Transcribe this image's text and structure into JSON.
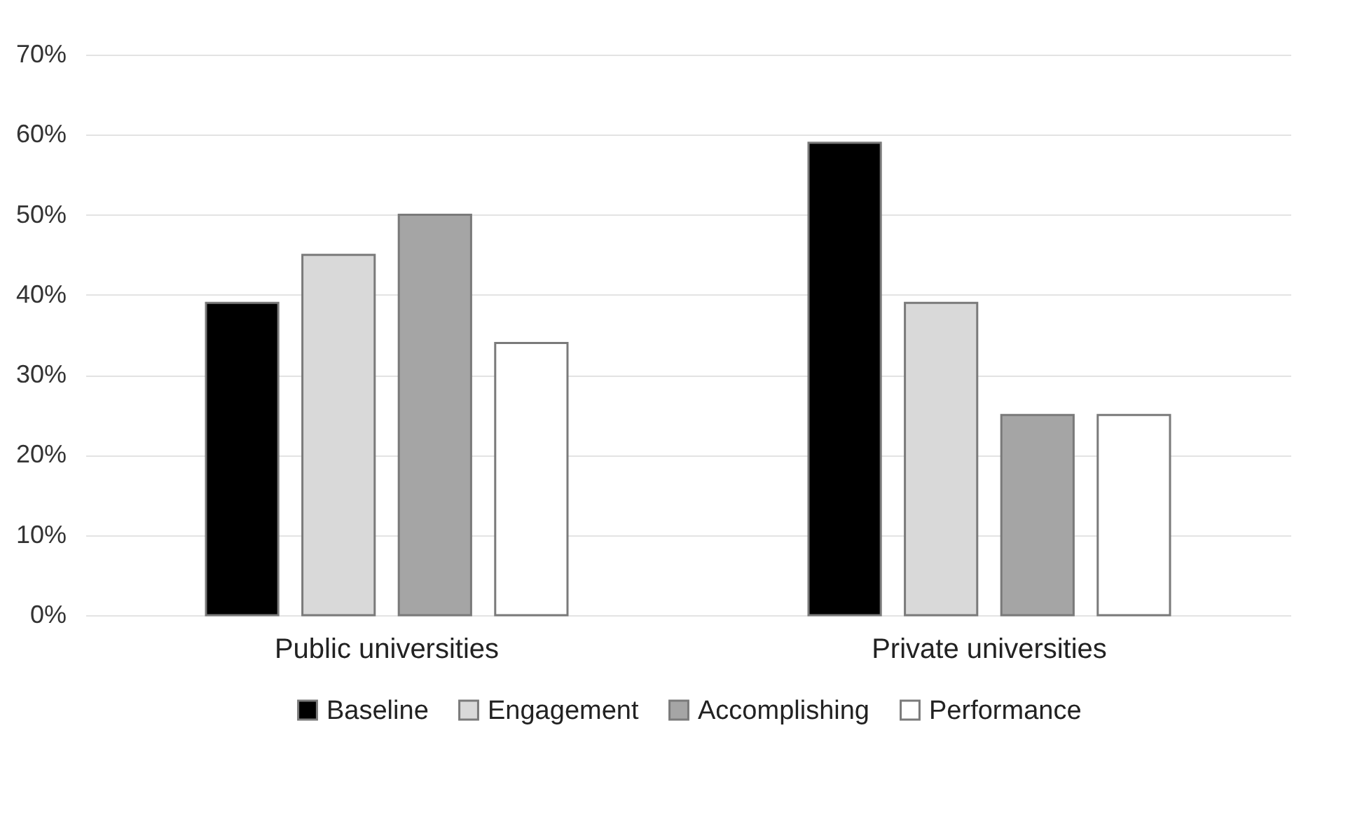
{
  "chart_data": {
    "type": "bar",
    "categories": [
      "Public universities",
      "Private universities"
    ],
    "series": [
      {
        "name": "Baseline",
        "color": "#000000",
        "values": [
          39,
          59
        ]
      },
      {
        "name": "Engagement",
        "color": "#d9d9d9",
        "values": [
          45,
          39
        ]
      },
      {
        "name": "Accomplishing",
        "color": "#a5a5a5",
        "values": [
          50,
          25
        ]
      },
      {
        "name": "Performance",
        "color": "#ffffff",
        "values": [
          34,
          25
        ]
      }
    ],
    "ylim": [
      0,
      70
    ],
    "yticks": [
      {
        "value": 0,
        "label": "0%"
      },
      {
        "value": 10,
        "label": "10%"
      },
      {
        "value": 20,
        "label": "20%"
      },
      {
        "value": 30,
        "label": "30%"
      },
      {
        "value": 40,
        "label": "40%"
      },
      {
        "value": 50,
        "label": "50%"
      },
      {
        "value": 60,
        "label": "60%"
      },
      {
        "value": 70,
        "label": "70%"
      }
    ],
    "grid": "y",
    "legend": "bottom"
  }
}
